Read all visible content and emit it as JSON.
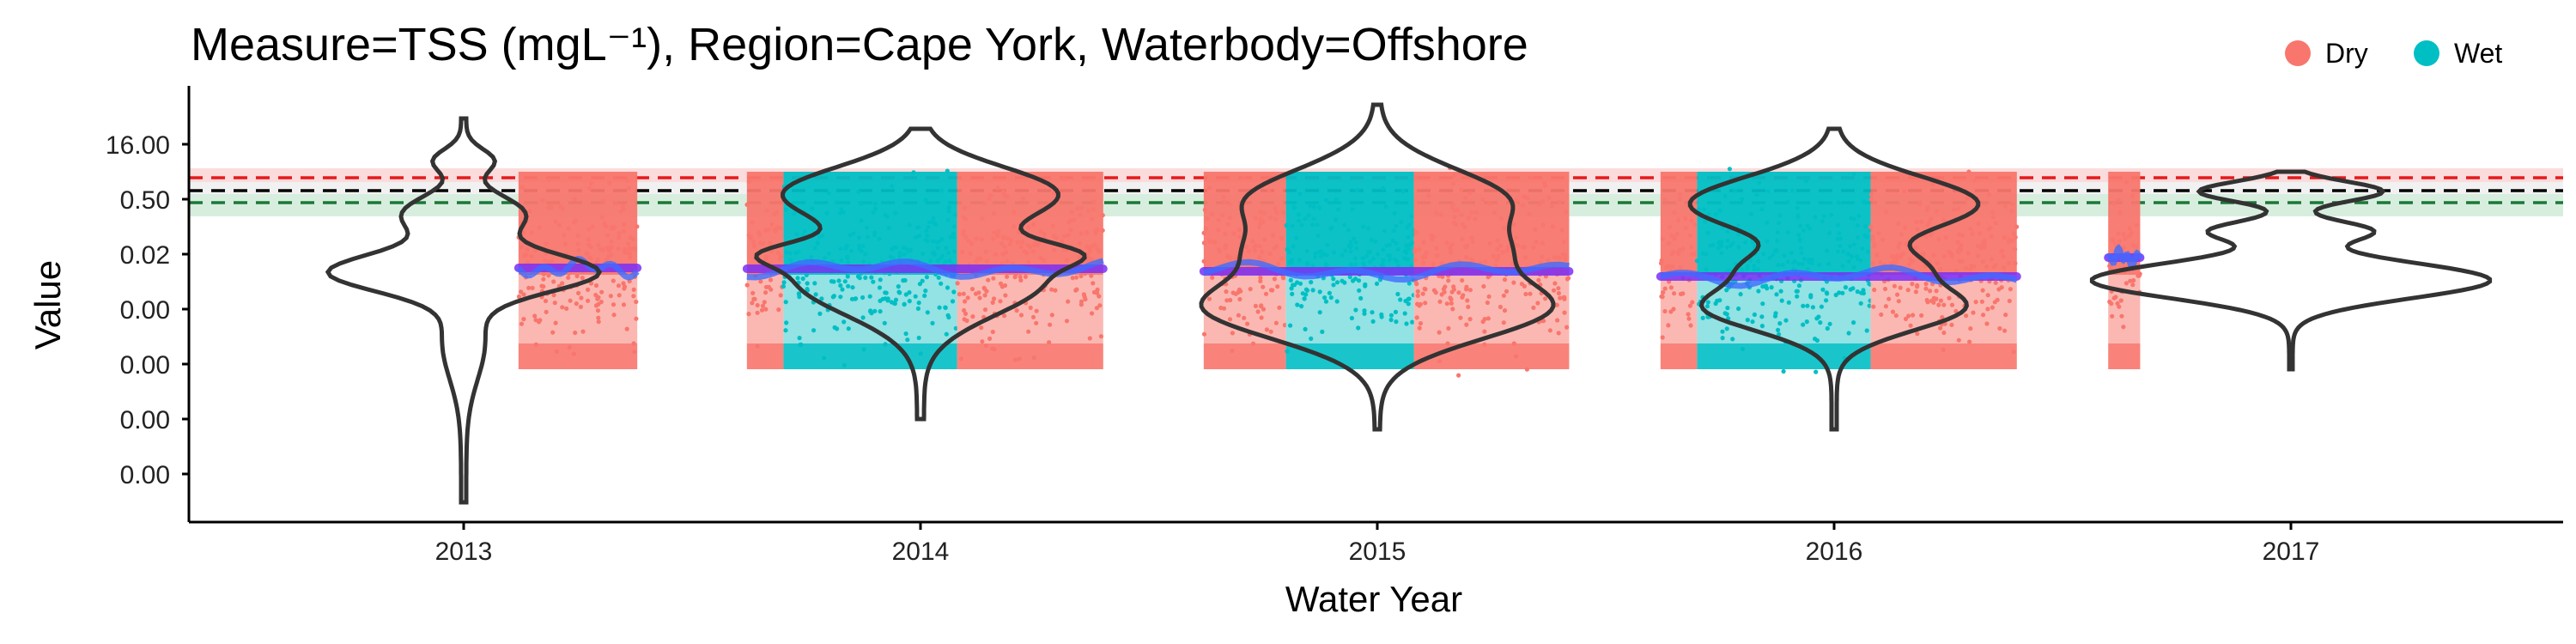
{
  "chart_data": {
    "type": "scatter",
    "title": "Measure=TSS (mgL⁻¹), Region=Cape York, Waterbody=Offshore",
    "xlabel": "Water Year",
    "ylabel": "Value",
    "x_ticks": [
      "2013",
      "2014",
      "2015",
      "2016",
      "2017"
    ],
    "y_ticks": [
      "16.00",
      "0.50",
      "0.02",
      "0.00",
      "0.00",
      "0.00",
      "0.00"
    ],
    "y_scale": "log",
    "grid": false,
    "legend": {
      "placement": "top-right",
      "entries": [
        {
          "name": "Dry",
          "color": "#F8766D"
        },
        {
          "name": "Wet",
          "color": "#00BFC4"
        }
      ]
    },
    "reference_lines": [
      {
        "color": "#E41A1C",
        "style": "dashed",
        "value": 1.4
      },
      {
        "color": "#000000",
        "style": "dashed",
        "value": 0.7
      },
      {
        "color": "#1B7837",
        "style": "dashed",
        "value": 0.4
      }
    ],
    "seasons": [
      {
        "year": 2013,
        "season": "Dry",
        "start": 2013.12,
        "end": 2013.38
      },
      {
        "year": 2014,
        "season": "Dry",
        "start": 2013.62,
        "end": 2013.7
      },
      {
        "year": 2014,
        "season": "Wet",
        "start": 2013.7,
        "end": 2014.08
      },
      {
        "year": 2014,
        "season": "Dry",
        "start": 2014.08,
        "end": 2014.4
      },
      {
        "year": 2015,
        "season": "Dry",
        "start": 2014.62,
        "end": 2014.8
      },
      {
        "year": 2015,
        "season": "Wet",
        "start": 2014.8,
        "end": 2015.08
      },
      {
        "year": 2015,
        "season": "Dry",
        "start": 2015.08,
        "end": 2015.42
      },
      {
        "year": 2016,
        "season": "Dry",
        "start": 2015.62,
        "end": 2015.7
      },
      {
        "year": 2016,
        "season": "Wet",
        "start": 2015.7,
        "end": 2016.08
      },
      {
        "year": 2016,
        "season": "Dry",
        "start": 2016.08,
        "end": 2016.4
      },
      {
        "year": 2017,
        "season": "Dry",
        "start": 2016.6,
        "end": 2016.67
      }
    ],
    "colors": {
      "dry": "#F8766D",
      "wet": "#00BFC4",
      "dry_fill": "#FBB4AE",
      "wet_fill": "#8DE0E3",
      "trend": "#7B2FF7",
      "smooth": "#3F6BFF",
      "violin": "#333333"
    }
  }
}
